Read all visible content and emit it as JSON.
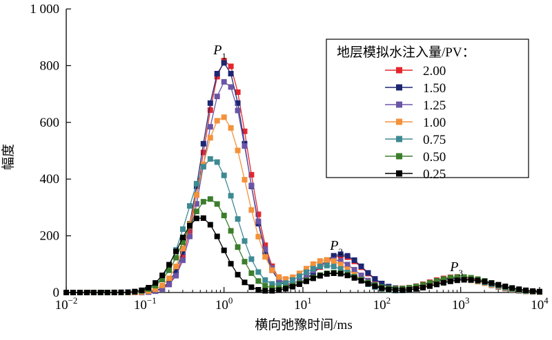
{
  "chart_data": {
    "type": "line",
    "x_scale": "log",
    "xlim": [
      0.01,
      10000
    ],
    "ylim": [
      0,
      1000
    ],
    "xlabel": "横向弛豫时间/ms",
    "ylabel": "幅度",
    "x_ticks": [
      {
        "base": "10",
        "exp": "−2"
      },
      {
        "base": "10",
        "exp": "−1"
      },
      {
        "base": "10",
        "exp": "0"
      },
      {
        "base": "10",
        "exp": "1"
      },
      {
        "base": "10",
        "exp": "2"
      },
      {
        "base": "10",
        "exp": "3"
      },
      {
        "base": "10",
        "exp": "4"
      }
    ],
    "y_ticks": [
      "0",
      "200",
      "400",
      "600",
      "800",
      "1 000"
    ],
    "legend": {
      "title": "地层模拟水注入量/PV：",
      "position": "top-right"
    },
    "annotations": [
      {
        "text": "P",
        "sub": "1",
        "x": 1.0,
        "y": 840
      },
      {
        "text": "P",
        "sub": "2",
        "x": 30,
        "y": 150
      },
      {
        "text": "P",
        "sub": "3",
        "x": 1000,
        "y": 75
      }
    ],
    "series": [
      {
        "name": "2.00",
        "color": "#e3262c",
        "peaks": [
          [
            1.05,
            820,
            0.28
          ],
          [
            30,
            130,
            0.3
          ],
          [
            900,
            55,
            0.38
          ]
        ],
        "valley": 55
      },
      {
        "name": "1.50",
        "color": "#1c2673",
        "peaks": [
          [
            1.0,
            810,
            0.28
          ],
          [
            30,
            135,
            0.3
          ],
          [
            900,
            50,
            0.38
          ]
        ],
        "valley": 55
      },
      {
        "name": "1.25",
        "color": "#6b55a5",
        "peaks": [
          [
            1.05,
            745,
            0.28
          ],
          [
            25,
            115,
            0.3
          ],
          [
            1000,
            48,
            0.38
          ]
        ],
        "valley": 45
      },
      {
        "name": "1.00",
        "color": "#f3923b",
        "peaks": [
          [
            0.95,
            620,
            0.3
          ],
          [
            20,
            115,
            0.32
          ],
          [
            1000,
            45,
            0.38
          ]
        ],
        "valley": 40
      },
      {
        "name": "0.75",
        "color": "#3e8a93",
        "peaks": [
          [
            0.7,
            472,
            0.3
          ],
          [
            20,
            95,
            0.34
          ],
          [
            1100,
            45,
            0.38
          ]
        ],
        "valley": 35
      },
      {
        "name": "0.50",
        "color": "#3c7d2c",
        "peaks": [
          [
            0.65,
            330,
            0.3
          ],
          [
            25,
            70,
            0.36
          ],
          [
            1000,
            55,
            0.4
          ]
        ],
        "valley": 25
      },
      {
        "name": "0.25",
        "color": "#000000",
        "peaks": [
          [
            0.5,
            265,
            0.28
          ],
          [
            25,
            68,
            0.34
          ],
          [
            1200,
            45,
            0.4
          ]
        ],
        "valley": 10
      }
    ]
  }
}
